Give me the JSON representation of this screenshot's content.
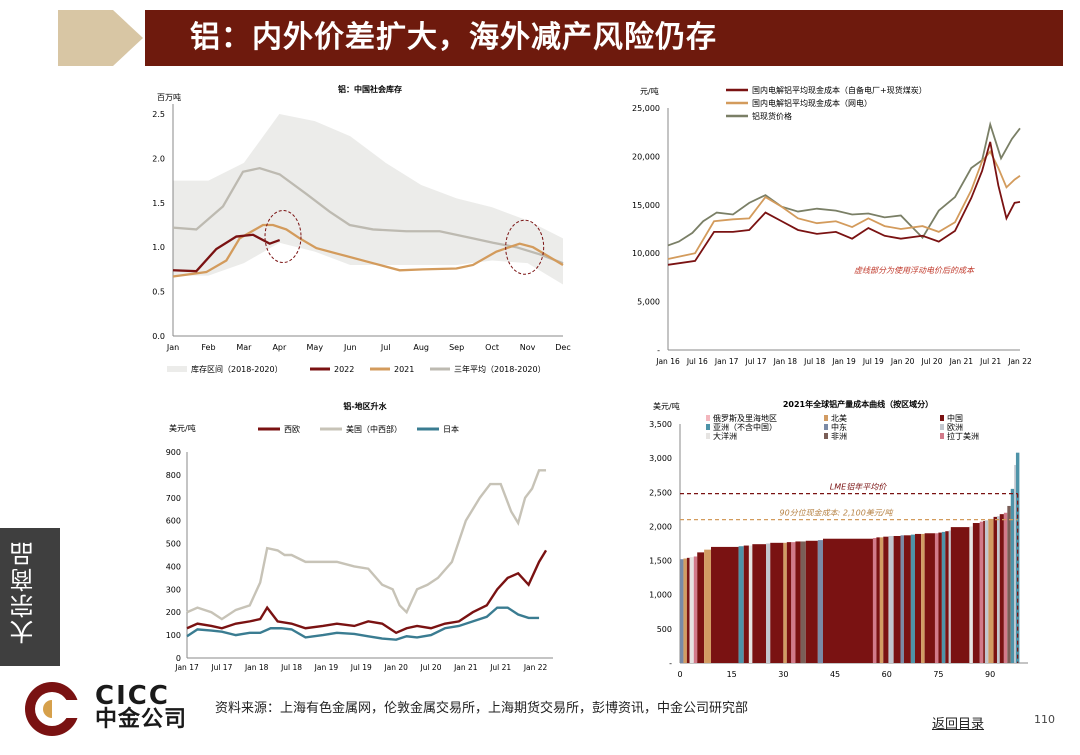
{
  "header": {
    "title": "铝：内外价差扩大，海外减产风险仍存"
  },
  "side_label": "大宗商品",
  "source": "资料来源：上海有色金属网，伦敦金属交易所，上海期货交易所，彭博资讯，中金公司研究部",
  "back_link": "返回目录",
  "page_number": "110",
  "logo": {
    "en": "CICC",
    "cn": "中金公司"
  },
  "chart_data": [
    {
      "type": "line",
      "title": "铝：中国社会库存",
      "ylabel": "百万吨",
      "ylim": [
        0,
        2.5
      ],
      "yticks": [
        "0.0",
        "0.5",
        "1.0",
        "1.5",
        "2.0",
        "2.5"
      ],
      "categories": [
        "Jan",
        "Feb",
        "Mar",
        "Apr",
        "May",
        "Jun",
        "Jul",
        "Aug",
        "Sep",
        "Oct",
        "Nov",
        "Dec"
      ],
      "legend": [
        "库存区间（2018-2020）",
        "2022",
        "2021",
        "三年平均（2018-2020）"
      ],
      "band_low": [
        0.68,
        0.68,
        0.82,
        1.05,
        0.95,
        0.8,
        0.8,
        0.8,
        0.8,
        0.85,
        0.82,
        0.58
      ],
      "band_high": [
        1.75,
        1.75,
        1.95,
        2.5,
        2.42,
        2.25,
        1.95,
        1.7,
        1.55,
        1.45,
        1.3,
        1.1
      ],
      "series": [
        {
          "name": "2022",
          "color": "#7a1212",
          "x": [
            0,
            0.7,
            1.3,
            1.9,
            2.4,
            2.9,
            3.2
          ],
          "values": [
            0.74,
            0.73,
            0.98,
            1.12,
            1.14,
            1.04,
            1.08
          ]
        },
        {
          "name": "2021",
          "color": "#d39b5c",
          "x": [
            0,
            1,
            1.6,
            2,
            2.7,
            3,
            3.4,
            3.8,
            4.3,
            5,
            6,
            6.8,
            7.5,
            8.5,
            9,
            9.7,
            10.4,
            10.8,
            11.7
          ],
          "values": [
            0.67,
            0.72,
            0.85,
            1.1,
            1.25,
            1.25,
            1.2,
            1.1,
            0.99,
            0.92,
            0.82,
            0.74,
            0.75,
            0.76,
            0.8,
            0.95,
            1.04,
            1.0,
            0.8
          ]
        },
        {
          "name": "三年平均（2018-2020）",
          "color": "#bdbab1",
          "x": [
            0,
            0.7,
            1.5,
            2.1,
            2.6,
            3.2,
            4,
            4.7,
            5.3,
            6,
            7,
            8,
            9,
            9.6,
            10.3,
            11,
            11.7
          ],
          "values": [
            1.22,
            1.2,
            1.46,
            1.85,
            1.89,
            1.82,
            1.6,
            1.4,
            1.25,
            1.2,
            1.18,
            1.18,
            1.1,
            1.05,
            1.0,
            0.92,
            0.82
          ]
        }
      ]
    },
    {
      "type": "line",
      "ylabel": "元/吨",
      "ylim": [
        0,
        25000
      ],
      "yticks": [
        "-",
        "5,000",
        "10,000",
        "15,000",
        "20,000",
        "25,000"
      ],
      "xticks": [
        "Jan 16",
        "Jul 16",
        "Jan 17",
        "Jul 17",
        "Jan 18",
        "Jul 18",
        "Jan 19",
        "Jul 19",
        "Jan 20",
        "Jul 20",
        "Jan 21",
        "Jul 21",
        "Jan 22"
      ],
      "legend": [
        "国内电解铝平均现金成本（自备电厂+现货煤炭）",
        "国内电解铝平均现金成本（网电）",
        "铝现货价格"
      ],
      "annotation": "虚线部分为使用浮动电价后的成本",
      "series": [
        {
          "name": "国内电解铝平均现金成本（自备电厂+现货煤炭）",
          "color": "#7a1212",
          "x": [
            0,
            1,
            1.7,
            2.4,
            3,
            3.6,
            4.2,
            4.8,
            5.5,
            6.2,
            6.8,
            7.4,
            8,
            8.6,
            9.4,
            10,
            10.6,
            11.2,
            11.6,
            11.9,
            12.2,
            12.5,
            12.8,
            13
          ],
          "values": [
            8800,
            9200,
            12200,
            12200,
            12400,
            14200,
            13300,
            12400,
            12000,
            12200,
            11500,
            12600,
            11800,
            11500,
            11800,
            11200,
            12300,
            15700,
            18500,
            21500,
            17000,
            13600,
            15200,
            15300
          ]
        },
        {
          "name": "国内电解铝平均现金成本（网电）",
          "color": "#d39b5c",
          "x": [
            0,
            1,
            1.7,
            2.4,
            3,
            3.6,
            4.2,
            4.8,
            5.5,
            6.2,
            6.8,
            7.4,
            8,
            8.6,
            9.4,
            10,
            10.6,
            11.2,
            11.6,
            11.9,
            12.2,
            12.5,
            12.8,
            13
          ],
          "values": [
            9400,
            10000,
            13300,
            13500,
            13600,
            15800,
            14800,
            13600,
            13100,
            13300,
            12700,
            13600,
            12800,
            12500,
            12800,
            12200,
            13200,
            16500,
            19500,
            20500,
            18800,
            16800,
            17600,
            18000
          ]
        },
        {
          "name": "铝现货价格",
          "color": "#7a7f66",
          "x": [
            0,
            0.4,
            0.9,
            1.3,
            1.8,
            2.4,
            3,
            3.6,
            4.2,
            4.8,
            5.5,
            6.2,
            6.8,
            7.4,
            8,
            8.6,
            9.4,
            10,
            10.6,
            11.2,
            11.6,
            11.9,
            12.3,
            12.7,
            13
          ],
          "values": [
            10800,
            11200,
            12100,
            13300,
            14200,
            14000,
            15200,
            16000,
            14800,
            14300,
            14600,
            14400,
            14000,
            14100,
            13700,
            13900,
            11600,
            14400,
            15800,
            18800,
            19600,
            23300,
            19800,
            21800,
            22900
          ]
        }
      ]
    },
    {
      "type": "line",
      "title": "铝-地区升水",
      "ylabel": "美元/吨",
      "ylim": [
        0,
        900
      ],
      "yticks": [
        "0",
        "100",
        "200",
        "300",
        "400",
        "500",
        "600",
        "700",
        "800",
        "900"
      ],
      "xticks": [
        "Jan 17",
        "Jul 17",
        "Jan 18",
        "Jul 18",
        "Jan 19",
        "Jul 19",
        "Jan 20",
        "Jul 20",
        "Jan 21",
        "Jul 21",
        "Jan 22"
      ],
      "legend": [
        "西欧",
        "美国（中西部）",
        "日本"
      ],
      "series": [
        {
          "name": "西欧",
          "color": "#7a1212",
          "x": [
            0,
            0.3,
            0.7,
            1,
            1.4,
            1.8,
            2.1,
            2.3,
            2.6,
            3,
            3.4,
            3.9,
            4.3,
            4.8,
            5.2,
            5.6,
            6,
            6.3,
            6.6,
            7,
            7.4,
            7.8,
            8.2,
            8.6,
            8.9,
            9.2,
            9.5,
            9.8,
            10.1,
            10.3
          ],
          "values": [
            130,
            150,
            140,
            130,
            150,
            160,
            170,
            220,
            160,
            150,
            130,
            140,
            150,
            140,
            160,
            150,
            110,
            130,
            140,
            130,
            150,
            160,
            200,
            230,
            300,
            350,
            370,
            320,
            420,
            470
          ]
        },
        {
          "name": "美国（中西部）",
          "color": "#c7c3b7",
          "x": [
            0,
            0.3,
            0.7,
            1,
            1.4,
            1.8,
            2.1,
            2.3,
            2.6,
            2.8,
            3,
            3.4,
            3.9,
            4.3,
            4.8,
            5.2,
            5.6,
            5.9,
            6.1,
            6.3,
            6.6,
            6.9,
            7.2,
            7.6,
            8,
            8.4,
            8.7,
            9,
            9.3,
            9.5,
            9.7,
            9.9,
            10.1,
            10.3
          ],
          "values": [
            200,
            220,
            200,
            170,
            210,
            230,
            330,
            480,
            470,
            450,
            450,
            420,
            420,
            420,
            400,
            390,
            320,
            300,
            230,
            200,
            300,
            320,
            350,
            420,
            600,
            700,
            760,
            760,
            640,
            590,
            700,
            740,
            820,
            820
          ]
        },
        {
          "name": "日本",
          "color": "#3a7c91",
          "x": [
            0,
            0.3,
            0.7,
            1,
            1.4,
            1.8,
            2.1,
            2.4,
            2.7,
            3,
            3.4,
            3.9,
            4.3,
            4.8,
            5.2,
            5.6,
            6,
            6.3,
            6.6,
            7,
            7.4,
            7.8,
            8.2,
            8.6,
            8.9,
            9.2,
            9.5,
            9.8,
            10.1
          ],
          "values": [
            95,
            125,
            120,
            115,
            100,
            110,
            110,
            130,
            130,
            125,
            90,
            100,
            110,
            105,
            95,
            85,
            80,
            95,
            90,
            100,
            130,
            140,
            160,
            180,
            220,
            220,
            190,
            175,
            175
          ]
        }
      ]
    },
    {
      "type": "bar",
      "title": "2021年全球铝产量成本曲线（按区域分）",
      "ylabel": "美元/吨",
      "ylim": [
        0,
        3500
      ],
      "yticks": [
        "-",
        "500",
        "1,000",
        "1,500",
        "2,000",
        "2,500",
        "3,000",
        "3,500"
      ],
      "xticks": [
        "0",
        "15",
        "30",
        "45",
        "60",
        "75",
        "90"
      ],
      "legend": [
        {
          "name": "俄罗斯及里海地区",
          "color": "#f3b6bd"
        },
        {
          "name": "北美",
          "color": "#d29c63"
        },
        {
          "name": "中国",
          "color": "#7a1212"
        },
        {
          "name": "亚洲（不含中国）",
          "color": "#4e93a8"
        },
        {
          "name": "中东",
          "color": "#7a8aa6"
        },
        {
          "name": "欧洲",
          "color": "#c2c7cf"
        },
        {
          "name": "大洋洲",
          "color": "#e6e4e2"
        },
        {
          "name": "非洲",
          "color": "#7a5e57"
        },
        {
          "name": "拉丁美洲",
          "color": "#d27a8a"
        }
      ],
      "reference_lines": [
        {
          "label": "LME铝年平均价",
          "value": 2480
        },
        {
          "label": "90分位现金成本: 2,100美元/吨",
          "value": 2100
        }
      ],
      "segments": [
        {
          "from": 0,
          "to": 1,
          "region": "中东",
          "y": 1520
        },
        {
          "from": 1,
          "to": 2,
          "region": "北美",
          "y": 1530
        },
        {
          "from": 2,
          "to": 2.8,
          "region": "中国",
          "y": 1540
        },
        {
          "from": 2.8,
          "to": 4,
          "region": "大洋洲",
          "y": 1550
        },
        {
          "from": 4,
          "to": 5,
          "region": "拉丁美洲",
          "y": 1560
        },
        {
          "from": 5,
          "to": 7,
          "region": "中国",
          "y": 1620
        },
        {
          "from": 7,
          "to": 9,
          "region": "北美",
          "y": 1660
        },
        {
          "from": 9,
          "to": 17,
          "region": "中国",
          "y": 1700
        },
        {
          "from": 17,
          "to": 18.5,
          "region": "亚洲（不含中国）",
          "y": 1710
        },
        {
          "from": 18.5,
          "to": 20,
          "region": "中国",
          "y": 1720
        },
        {
          "from": 20,
          "to": 21,
          "region": "大洋洲",
          "y": 1720
        },
        {
          "from": 21,
          "to": 25,
          "region": "中国",
          "y": 1740
        },
        {
          "from": 25,
          "to": 26.2,
          "region": "欧洲",
          "y": 1750
        },
        {
          "from": 26.2,
          "to": 30,
          "region": "中国",
          "y": 1760
        },
        {
          "from": 30,
          "to": 31,
          "region": "北美",
          "y": 1760
        },
        {
          "from": 31,
          "to": 32.3,
          "region": "中国",
          "y": 1770
        },
        {
          "from": 32.3,
          "to": 33.5,
          "region": "拉丁美洲",
          "y": 1770
        },
        {
          "from": 33.5,
          "to": 35,
          "region": "中国",
          "y": 1780
        },
        {
          "from": 35,
          "to": 36.5,
          "region": "非洲",
          "y": 1780
        },
        {
          "from": 36.5,
          "to": 40,
          "region": "中国",
          "y": 1790
        },
        {
          "from": 40,
          "to": 41.5,
          "region": "中东",
          "y": 1800
        },
        {
          "from": 41.5,
          "to": 56,
          "region": "中国",
          "y": 1820
        },
        {
          "from": 56,
          "to": 57,
          "region": "拉丁美洲",
          "y": 1830
        },
        {
          "from": 57,
          "to": 58,
          "region": "中国",
          "y": 1840
        },
        {
          "from": 58,
          "to": 59,
          "region": "北美",
          "y": 1840
        },
        {
          "from": 59,
          "to": 60.5,
          "region": "中国",
          "y": 1850
        },
        {
          "from": 60.5,
          "to": 62,
          "region": "欧洲",
          "y": 1860
        },
        {
          "from": 62,
          "to": 64,
          "region": "中国",
          "y": 1860
        },
        {
          "from": 64,
          "to": 65,
          "region": "中东",
          "y": 1870
        },
        {
          "from": 65,
          "to": 67,
          "region": "中国",
          "y": 1870
        },
        {
          "from": 67,
          "to": 68.2,
          "region": "亚洲（不含中国）",
          "y": 1880
        },
        {
          "from": 68.2,
          "to": 70,
          "region": "中国",
          "y": 1890
        },
        {
          "from": 70,
          "to": 71,
          "region": "北美",
          "y": 1890
        },
        {
          "from": 71,
          "to": 74,
          "region": "中国",
          "y": 1900
        },
        {
          "from": 74,
          "to": 75,
          "region": "拉丁美洲",
          "y": 1900
        },
        {
          "from": 75,
          "to": 76,
          "region": "中国",
          "y": 1910
        },
        {
          "from": 76,
          "to": 77,
          "region": "亚洲（不含中国）",
          "y": 1920
        },
        {
          "from": 77,
          "to": 78,
          "region": "中国",
          "y": 1930
        },
        {
          "from": 78,
          "to": 78.6,
          "region": "欧洲",
          "y": 1940
        },
        {
          "from": 78.6,
          "to": 84,
          "region": "中国",
          "y": 1990
        },
        {
          "from": 84,
          "to": 85,
          "region": "大洋洲",
          "y": 2000
        },
        {
          "from": 85,
          "to": 87,
          "region": "中国",
          "y": 2050
        },
        {
          "from": 87,
          "to": 88,
          "region": "拉丁美洲",
          "y": 2070
        },
        {
          "from": 88,
          "to": 88.5,
          "region": "中国",
          "y": 2080
        },
        {
          "from": 88.5,
          "to": 89.5,
          "region": "欧洲",
          "y": 2090
        },
        {
          "from": 89.5,
          "to": 91,
          "region": "北美",
          "y": 2110
        },
        {
          "from": 91,
          "to": 92,
          "region": "中国",
          "y": 2140
        },
        {
          "from": 92,
          "to": 92.8,
          "region": "欧洲",
          "y": 2150
        },
        {
          "from": 92.8,
          "to": 94,
          "region": "中国",
          "y": 2180
        },
        {
          "from": 94,
          "to": 95,
          "region": "拉丁美洲",
          "y": 2200
        },
        {
          "from": 95,
          "to": 96,
          "region": "非洲",
          "y": 2300
        },
        {
          "from": 96,
          "to": 97,
          "region": "亚洲（不含中国）",
          "y": 2550
        },
        {
          "from": 97,
          "to": 97.5,
          "region": "欧洲",
          "y": 2900
        },
        {
          "from": 97.5,
          "to": 98.5,
          "region": "亚洲（不含中国）",
          "y": 3080
        }
      ]
    }
  ]
}
